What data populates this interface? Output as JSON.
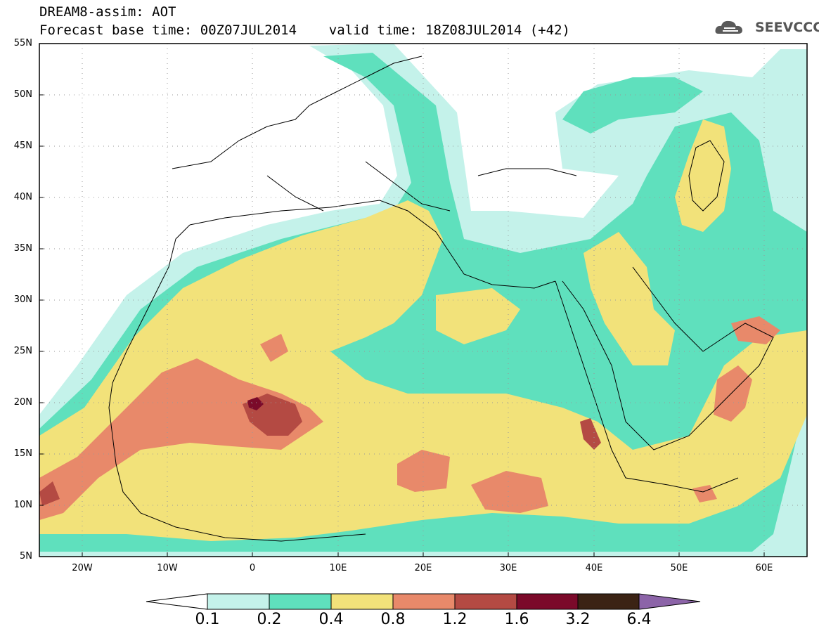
{
  "header": {
    "line1": "DREAM8-assim: AOT",
    "line2": "Forecast base time: 00Z07JUL2014    valid time: 18Z08JUL2014 (+42)"
  },
  "logo": {
    "text": "SEEVCCC",
    "icon": "cloud-icon"
  },
  "map": {
    "lon_range": [
      -25,
      65
    ],
    "lat_range": [
      5,
      55
    ],
    "y_ticks": [
      "55N",
      "50N",
      "45N",
      "40N",
      "35N",
      "30N",
      "25N",
      "20N",
      "15N",
      "10N",
      "5N"
    ],
    "x_ticks": [
      "20W",
      "10W",
      "0",
      "10E",
      "20E",
      "30E",
      "40E",
      "50E",
      "60E"
    ]
  },
  "colorbar": {
    "labels": [
      "0.1",
      "0.2",
      "0.4",
      "0.8",
      "1.2",
      "1.6",
      "3.2",
      "6.4"
    ],
    "colors": [
      "#c4f2ea",
      "#5fe0bd",
      "#f2e27a",
      "#e8896a",
      "#b44a43",
      "#7b0a2a",
      "#3b2314",
      "#8c64a8"
    ]
  }
}
